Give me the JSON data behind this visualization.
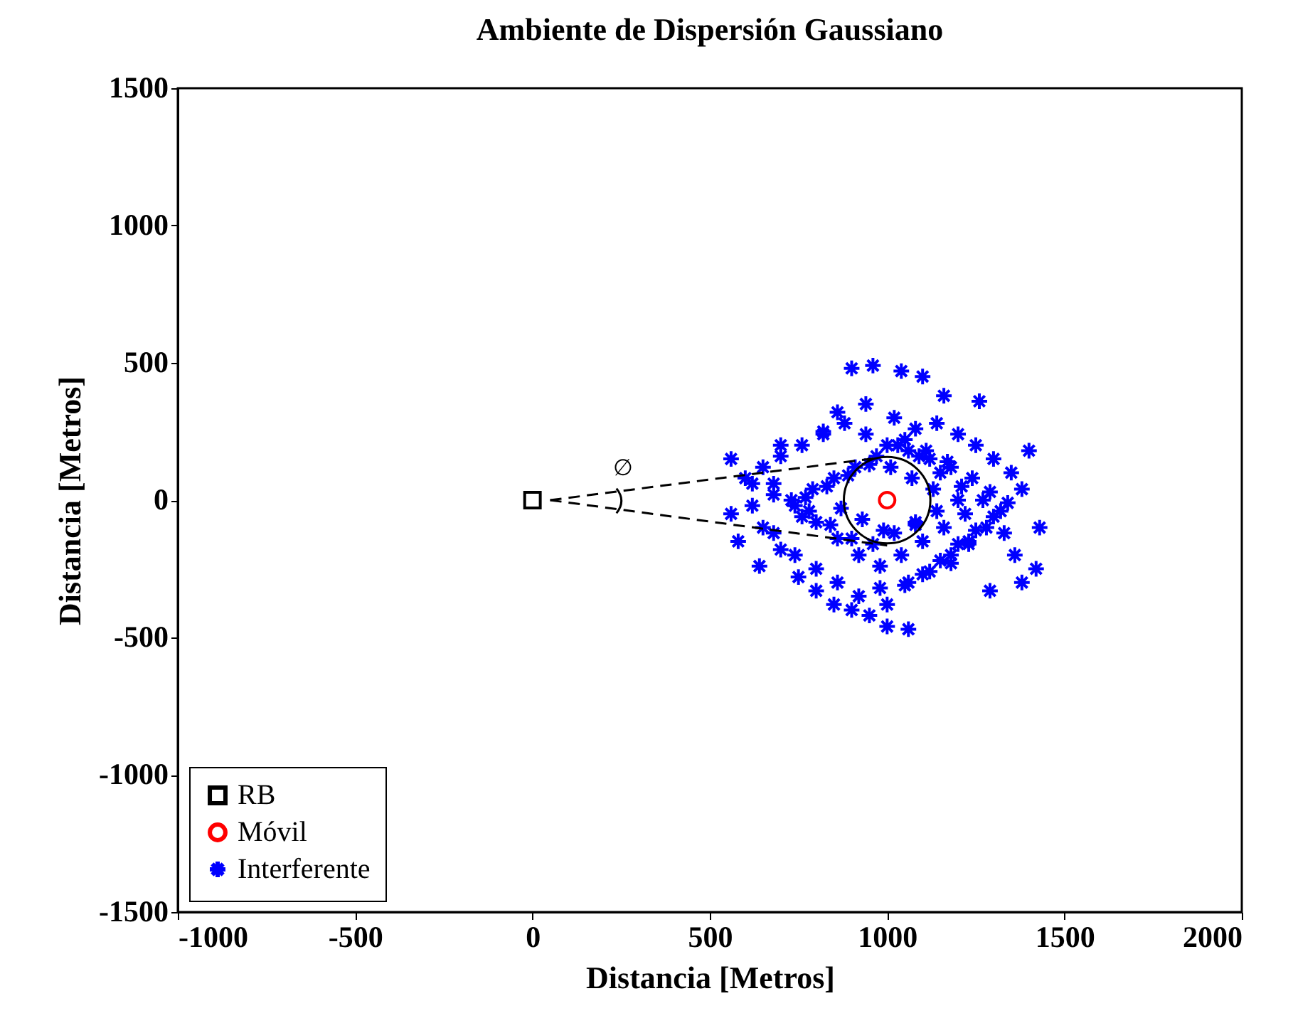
{
  "chart_data": {
    "type": "scatter",
    "title": "Ambiente de Dispersión Gaussiano",
    "xlabel": "Distancia [Metros]",
    "ylabel": "Distancia [Metros]",
    "xlim": [
      -1000,
      2000
    ],
    "xticks": [
      -1000,
      -500,
      0,
      500,
      1000,
      1500,
      2000
    ],
    "ylim": [
      -1500,
      1500
    ],
    "yticks": [
      -1500,
      -1000,
      -500,
      0,
      500,
      1000,
      1500
    ],
    "grid": false,
    "legend": "bottom left",
    "annotations": [
      "∅"
    ],
    "series": [
      {
        "name": "RB",
        "color": "#000000",
        "marker": "square",
        "x": [
          0
        ],
        "values": [
          0
        ]
      },
      {
        "name": "Móvil",
        "color": "#ff0000",
        "marker": "circle",
        "x": [
          1000
        ],
        "values": [
          0
        ]
      },
      {
        "name": "Interferente",
        "color": "#0000ff",
        "marker": "cross",
        "x": [
          900,
          960,
          1040,
          1100,
          1060,
          1000,
          1430,
          1400,
          560,
          560,
          580,
          640,
          1260,
          1160,
          820,
          700,
          680,
          760,
          860,
          940,
          1020,
          1080,
          1140,
          1200,
          1250,
          1300,
          1350,
          1380,
          1320,
          1280,
          1230,
          1180,
          1120,
          1060,
          980,
          920,
          860,
          800,
          740,
          680,
          620,
          600,
          650,
          700,
          760,
          820,
          880,
          940,
          1000,
          1060,
          1120,
          1180,
          1240,
          1290,
          1340,
          1300,
          1250,
          1200,
          1150,
          1100,
          1050,
          1000,
          950,
          900,
          850,
          800,
          750,
          700,
          650,
          620,
          680,
          740,
          800,
          860,
          920,
          980,
          1040,
          1100,
          1160,
          1220,
          1270,
          1210,
          1150,
          1090,
          1030,
          970,
          910,
          850,
          790,
          730,
          780,
          840,
          900,
          960,
          1020,
          1080,
          1140,
          1200,
          1130,
          1070,
          1010,
          950,
          890,
          830,
          770,
          870,
          930,
          990,
          1050,
          1110,
          1170,
          1230,
          1360,
          1420,
          1380,
          1330,
          1080,
          1180,
          1290
        ],
        "values": [
          480,
          490,
          470,
          450,
          -470,
          -460,
          -100,
          180,
          150,
          -50,
          -150,
          -240,
          360,
          380,
          250,
          200,
          60,
          -60,
          320,
          350,
          300,
          260,
          280,
          240,
          200,
          150,
          100,
          40,
          -40,
          -100,
          -150,
          -200,
          -260,
          -300,
          -320,
          -350,
          -300,
          -250,
          -200,
          -120,
          -20,
          80,
          120,
          160,
          200,
          240,
          280,
          240,
          200,
          180,
          150,
          120,
          80,
          30,
          -10,
          -60,
          -110,
          -160,
          -220,
          -270,
          -310,
          -380,
          -420,
          -400,
          -380,
          -330,
          -280,
          -180,
          -100,
          60,
          20,
          -20,
          -80,
          -140,
          -200,
          -240,
          -200,
          -150,
          -100,
          -50,
          0,
          50,
          100,
          160,
          200,
          160,
          120,
          80,
          40,
          0,
          -40,
          -90,
          -140,
          -160,
          -120,
          -80,
          -40,
          0,
          40,
          80,
          120,
          130,
          90,
          50,
          10,
          -30,
          -70,
          -110,
          220,
          180,
          140,
          -160,
          -200,
          -250,
          -300,
          -120,
          -90,
          -230,
          -330
        ]
      },
      {
        "type": "line",
        "color": "#000000",
        "line_style": "dashed",
        "x": [
          50,
          980
        ],
        "values": [
          0,
          155
        ]
      },
      {
        "type": "line",
        "color": "#000000",
        "line_style": "dashed",
        "x": [
          50,
          1000
        ],
        "values": [
          0,
          -165
        ]
      }
    ]
  }
}
